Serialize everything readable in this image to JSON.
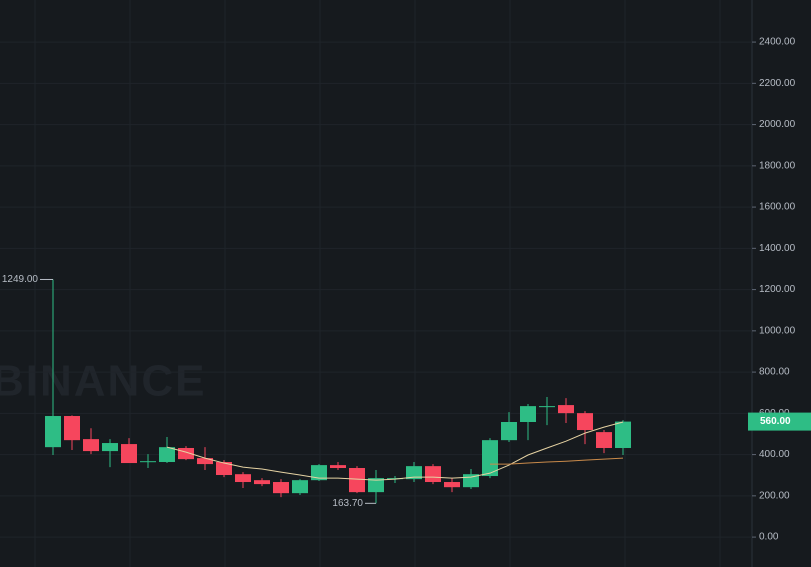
{
  "chart_data": {
    "type": "candlestick",
    "watermark": "BINANCE",
    "ylim": [
      -145,
      2604
    ],
    "yticks": [
      {
        "value": 0,
        "label": "0.00"
      },
      {
        "value": 200,
        "label": "200.00"
      },
      {
        "value": 400,
        "label": "400.00"
      },
      {
        "value": 600,
        "label": "600.00"
      },
      {
        "value": 800,
        "label": "800.00"
      },
      {
        "value": 1000,
        "label": "1000.00"
      },
      {
        "value": 1200,
        "label": "1200.00"
      },
      {
        "value": 1400,
        "label": "1400.00"
      },
      {
        "value": 1600,
        "label": "1600.00"
      },
      {
        "value": 1800,
        "label": "1800.00"
      },
      {
        "value": 2000,
        "label": "2000.00"
      },
      {
        "value": 2200,
        "label": "2200.00"
      },
      {
        "value": 2400,
        "label": "2400.00"
      }
    ],
    "grid": true,
    "up_color": "#2ebd85",
    "down_color": "#f6465d",
    "open": [
      436,
      587,
      475,
      417,
      451,
      364,
      364,
      432,
      383,
      364,
      305,
      276,
      267,
      213,
      276,
      349,
      335,
      218,
      281,
      281,
      344,
      267,
      242,
      296,
      470,
      558,
      630,
      640,
      601,
      509,
      432
    ],
    "high": [
      1249,
      590,
      528,
      475,
      480,
      402,
      485,
      441,
      436,
      373,
      315,
      286,
      281,
      281,
      354,
      364,
      344,
      325,
      296,
      364,
      354,
      286,
      330,
      480,
      606,
      645,
      679,
      674,
      611,
      519,
      567
    ],
    "low": [
      398,
      422,
      402,
      339,
      359,
      335,
      359,
      373,
      325,
      291,
      238,
      247,
      194,
      204,
      272,
      325,
      213,
      163.7,
      262,
      267,
      257,
      218,
      233,
      286,
      461,
      470,
      543,
      553,
      451,
      407,
      398
    ],
    "close": [
      587,
      470,
      417,
      456,
      359,
      368,
      436,
      378,
      354,
      301,
      267,
      257,
      213,
      276,
      349,
      335,
      218,
      286,
      286,
      344,
      267,
      242,
      305,
      470,
      558,
      635,
      635,
      601,
      519,
      432,
      560
    ],
    "overlays": [
      {
        "color": "#e6d3a3",
        "values": [
          null,
          null,
          null,
          null,
          null,
          null,
          436,
          412,
          383,
          359,
          339,
          330,
          315,
          301,
          286,
          286,
          281,
          276,
          281,
          291,
          291,
          286,
          291,
          310,
          349,
          398,
          432,
          465,
          504,
          533,
          558
        ]
      },
      {
        "color": "#c98a4a",
        "values": [
          null,
          null,
          null,
          null,
          null,
          null,
          null,
          null,
          null,
          null,
          null,
          null,
          null,
          null,
          null,
          null,
          null,
          null,
          null,
          null,
          null,
          null,
          null,
          354,
          354,
          359,
          364,
          368,
          373,
          378,
          383
        ]
      }
    ],
    "high_label": "1249.00",
    "low_label": "163.70",
    "last_label": "560.00"
  }
}
